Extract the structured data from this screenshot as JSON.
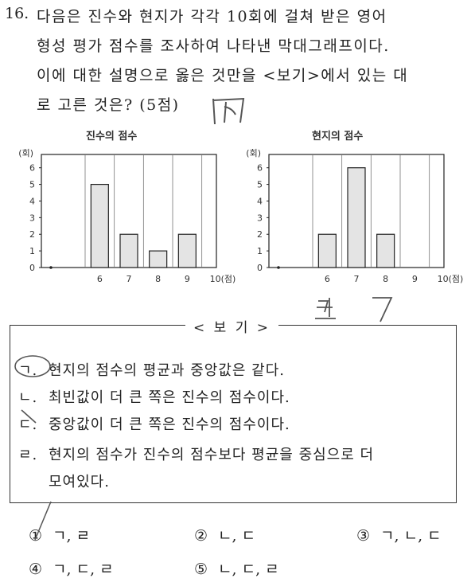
{
  "question": {
    "number": "16.",
    "lines": [
      "다음은 진수와 현지가 각각 10회에 걸쳐 받은 영어",
      "형성 평가 점수를 조사하여 나타낸 막대그래프이다.",
      "이에 대한 설명으로 옳은 것만을 <보기>에서 있는 대",
      "로 고른 것은? (5점)"
    ]
  },
  "chart_data": [
    {
      "type": "bar",
      "title": "진수의 점수",
      "ylabel": "(회)",
      "xlabel": "(점)",
      "categories": [
        "6",
        "7",
        "8",
        "9",
        "10"
      ],
      "tick_labels_x": [
        "6",
        "7",
        "8",
        "9",
        "10(점)"
      ],
      "values": [
        5,
        2,
        1,
        2,
        0
      ],
      "ylim": [
        0,
        6
      ],
      "yticks": [
        "0",
        "1",
        "2",
        "3",
        "4",
        "5",
        "6"
      ],
      "grid": true
    },
    {
      "type": "bar",
      "title": "현지의 점수",
      "ylabel": "(회)",
      "xlabel": "(점)",
      "categories": [
        "6",
        "7",
        "8",
        "9",
        "10"
      ],
      "tick_labels_x": [
        "6",
        "7",
        "8",
        "9",
        "10(점)"
      ],
      "values": [
        2,
        6,
        2,
        0,
        0
      ],
      "ylim": [
        0,
        6
      ],
      "yticks": [
        "0",
        "1",
        "2",
        "3",
        "4",
        "5",
        "6"
      ],
      "grid": true
    }
  ],
  "bogi": {
    "title": "< 보 기 >",
    "items": [
      {
        "mark": "ㄱ.",
        "text": "현지의 점수의 평균과 중앙값은 같다."
      },
      {
        "mark": "ㄴ.",
        "text": "최빈값이 더 큰 쪽은 진수의 점수이다."
      },
      {
        "mark": "ㄷ.",
        "text": "중앙값이 더 큰 쪽은 진수의 점수이다."
      },
      {
        "mark": "ㄹ.",
        "text": "현지의 점수가 진수의 점수보다 평균을 중심으로 더"
      }
    ],
    "item4_continuation": "모여있다."
  },
  "choices": [
    {
      "num": "①",
      "text": "ㄱ, ㄹ"
    },
    {
      "num": "②",
      "text": "ㄴ, ㄷ"
    },
    {
      "num": "③",
      "text": "ㄱ, ㄴ, ㄷ"
    },
    {
      "num": "④",
      "text": "ㄱ, ㄷ, ㄹ"
    },
    {
      "num": "⑤",
      "text": "ㄴ, ㄷ, ㄹ"
    }
  ],
  "colors": {
    "ink": "#222222",
    "bar_fill": "#e4e4e4",
    "pencil": "#555555"
  }
}
